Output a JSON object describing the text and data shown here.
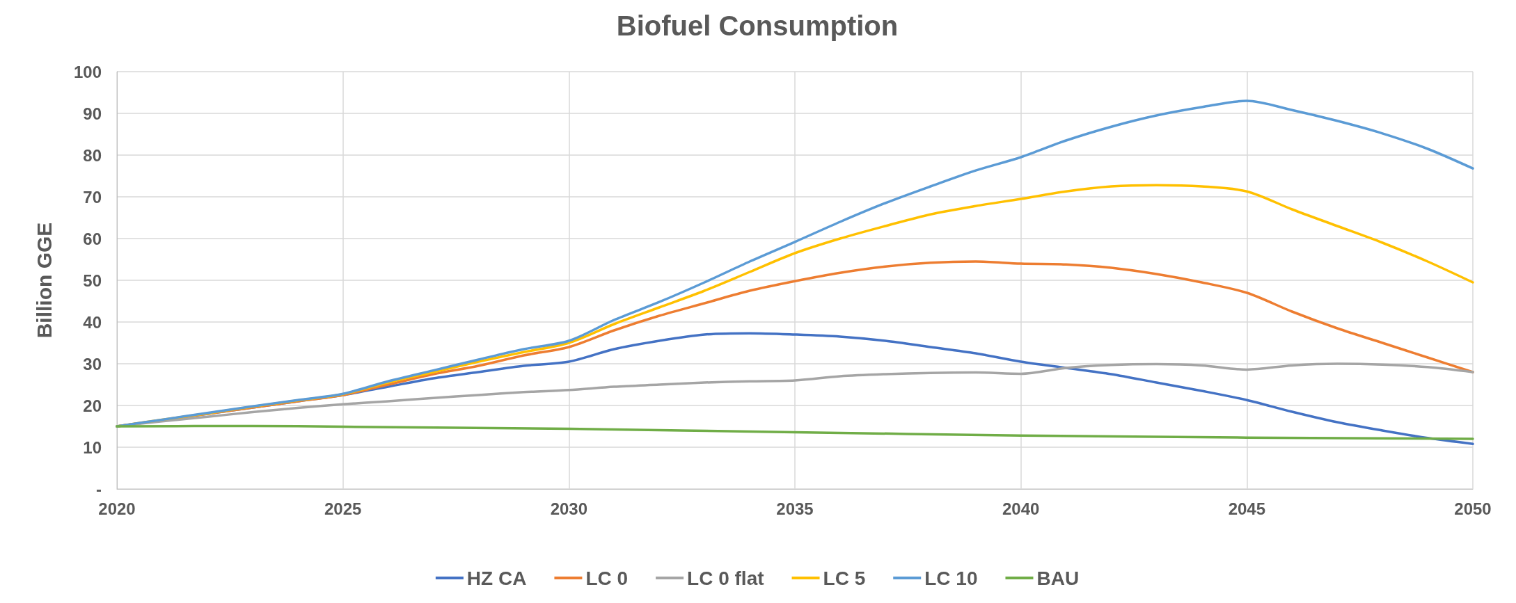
{
  "chart_data": {
    "type": "line",
    "title": "Biofuel Consumption",
    "ylabel": "Billion GGE",
    "x": [
      2020,
      2021,
      2022,
      2023,
      2024,
      2025,
      2026,
      2027,
      2028,
      2029,
      2030,
      2031,
      2032,
      2033,
      2034,
      2035,
      2036,
      2037,
      2038,
      2039,
      2040,
      2041,
      2042,
      2043,
      2044,
      2045,
      2046,
      2047,
      2048,
      2049,
      2050
    ],
    "series": [
      {
        "name": "HZ CA",
        "color": "#4472c4",
        "values": [
          15,
          16.5,
          18,
          19.5,
          21,
          22.5,
          24.5,
          26.5,
          28,
          29.5,
          30.5,
          33.5,
          35.5,
          37,
          37.3,
          37,
          36.5,
          35.5,
          34,
          32.5,
          30.5,
          29,
          27.5,
          25.5,
          23.5,
          21.3,
          18.5,
          16,
          14,
          12.2,
          10.8
        ]
      },
      {
        "name": "LC 0",
        "color": "#ed7d31",
        "values": [
          15,
          16.5,
          18,
          19.5,
          21,
          22.5,
          25,
          27.5,
          29.5,
          32,
          34,
          38,
          41.5,
          44.5,
          47.5,
          49.8,
          51.8,
          53.3,
          54.2,
          54.5,
          54,
          53.8,
          53,
          51.5,
          49.5,
          47,
          42.5,
          38.5,
          35,
          31.5,
          28
        ]
      },
      {
        "name": "LC 0 flat",
        "color": "#a5a5a5",
        "values": [
          15,
          16.2,
          17.3,
          18.4,
          19.4,
          20.3,
          21,
          21.8,
          22.5,
          23.2,
          23.7,
          24.5,
          25,
          25.5,
          25.8,
          26,
          27,
          27.5,
          27.8,
          27.9,
          27.6,
          29,
          29.7,
          29.9,
          29.6,
          28.6,
          29.6,
          30,
          29.8,
          29.2,
          28
        ]
      },
      {
        "name": "LC 5",
        "color": "#ffc000",
        "values": [
          15,
          16.6,
          18.1,
          19.7,
          21.2,
          22.7,
          25.5,
          28,
          30.5,
          32.8,
          35,
          39.5,
          43.5,
          47.5,
          52,
          56.5,
          60,
          63,
          65.8,
          67.8,
          69.5,
          71.3,
          72.5,
          72.8,
          72.5,
          71.3,
          67,
          63,
          59,
          54.5,
          49.5
        ]
      },
      {
        "name": "LC 10",
        "color": "#5b9bd5",
        "values": [
          15,
          16.6,
          18.2,
          19.8,
          21.3,
          22.8,
          25.8,
          28.4,
          31,
          33.5,
          35.5,
          40.5,
          44.8,
          49.5,
          54.5,
          59.2,
          64,
          68.5,
          72.5,
          76.3,
          79.5,
          83.5,
          86.8,
          89.5,
          91.5,
          93,
          90.8,
          88.2,
          85.2,
          81.5,
          76.8
        ]
      },
      {
        "name": "BAU",
        "color": "#70ad47",
        "x": [
          2020,
          2023,
          2025,
          2030,
          2035,
          2040,
          2045,
          2050
        ],
        "values": [
          15,
          15.1,
          14.9,
          14.4,
          13.6,
          12.8,
          12.3,
          12
        ]
      }
    ],
    "xlim": [
      2020,
      2050
    ],
    "xticks": [
      2020,
      2025,
      2030,
      2035,
      2040,
      2045,
      2050
    ],
    "ylim": [
      0,
      100
    ],
    "yticks": [
      {
        "value": 0,
        "label": "-"
      },
      10,
      20,
      30,
      40,
      50,
      60,
      70,
      80,
      90,
      100
    ],
    "grid": true,
    "legend": "bottom",
    "marker": "none",
    "line_style": "solid"
  }
}
